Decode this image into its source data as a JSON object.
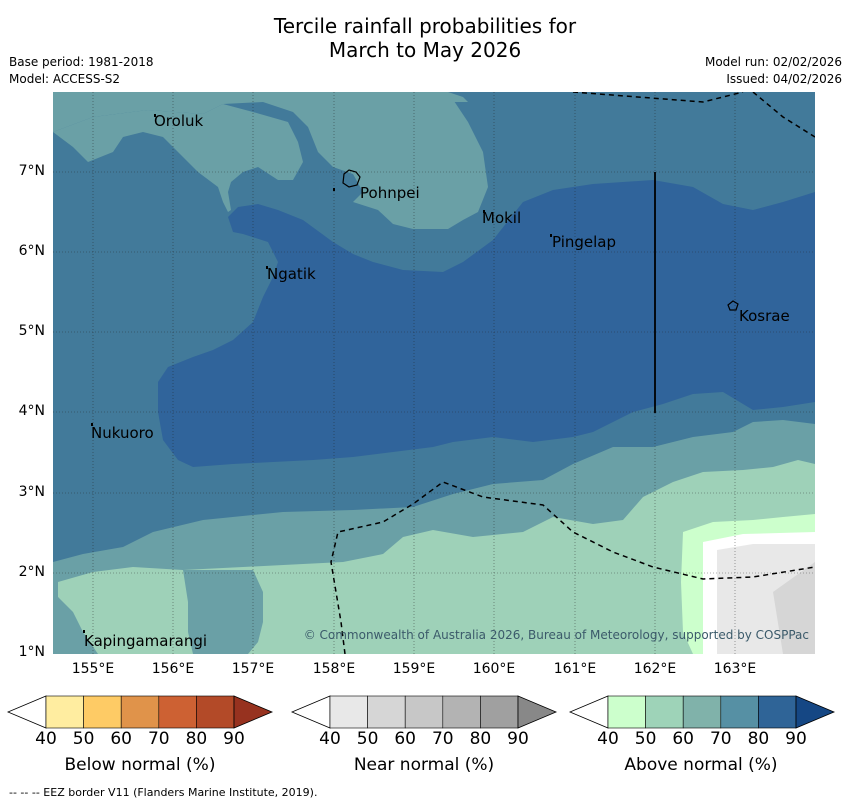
{
  "title_line1": "Tercile rainfall probabilities for",
  "title_line2": "March to May 2026",
  "base_period": "Base period: 1981-2018",
  "model": "Model: ACCESS-S2",
  "model_run": "Model run: 02/02/2026",
  "issued": "Issued: 04/02/2026",
  "copyright": "© Commonwealth of Australia 2026, Bureau of Meteorology, supported by COSPPac",
  "x_axis": [
    "155°E",
    "156°E",
    "157°E",
    "158°E",
    "159°E",
    "160°E",
    "161°E",
    "162°E",
    "163°E"
  ],
  "y_axis": [
    "7°N",
    "6°N",
    "5°N",
    "4°N",
    "3°N",
    "2°N",
    "1°N"
  ],
  "places": {
    "oroluk": "Oroluk",
    "pohnpei": "Pohnpei",
    "mokil": "Mokil",
    "pingelap": "Pingelap",
    "ngatik": "Ngatik",
    "kosrae": "Kosrae",
    "nukuoro": "Nukuoro",
    "kapingamarangi": "Kapingamarangi"
  },
  "colorbars": {
    "below": {
      "label": "Below normal (%)",
      "ticks": [
        "40",
        "50",
        "60",
        "70",
        "80",
        "90"
      ],
      "colors": [
        "#ffffff",
        "#ffeda0",
        "#fecb65",
        "#e0934a",
        "#cd6133",
        "#b34a28",
        "#97321f"
      ]
    },
    "near": {
      "label": "Near normal (%)",
      "ticks": [
        "40",
        "50",
        "60",
        "70",
        "80",
        "90"
      ],
      "colors": [
        "#ffffff",
        "#e8e8e8",
        "#d6d6d6",
        "#c7c7c7",
        "#b3b3b3",
        "#a0a0a0",
        "#888888"
      ]
    },
    "above": {
      "label": "Above normal (%)",
      "ticks": [
        "40",
        "50",
        "60",
        "70",
        "80",
        "90"
      ],
      "colors": [
        "#ffffff",
        "#ccffcc",
        "#9ed3b8",
        "#80b2aa",
        "#5690a4",
        "#2f6497",
        "#154784"
      ]
    }
  },
  "footer": "--  --  -- EEZ border V11 (Flanders Marine Institute, 2019)."
}
